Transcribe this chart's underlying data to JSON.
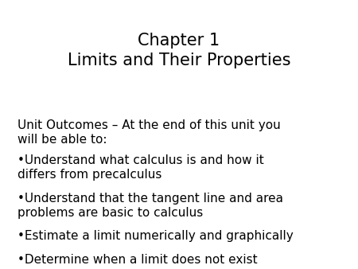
{
  "title_line1": "Chapter 1",
  "title_line2": "Limits and Their Properties",
  "title_fontsize": 15,
  "body_fontsize": 11,
  "background_color": "#ffffff",
  "text_color": "#000000",
  "intro_text": "Unit Outcomes – At the end of this unit you\nwill be able to:",
  "bullet_items": [
    "•Understand what calculus is and how it\ndiffers from precalculus",
    "•Understand that the tangent line and area\nproblems are basic to calculus",
    "•Estimate a limit numerically and graphically",
    "•Determine when a limit does not exist"
  ]
}
